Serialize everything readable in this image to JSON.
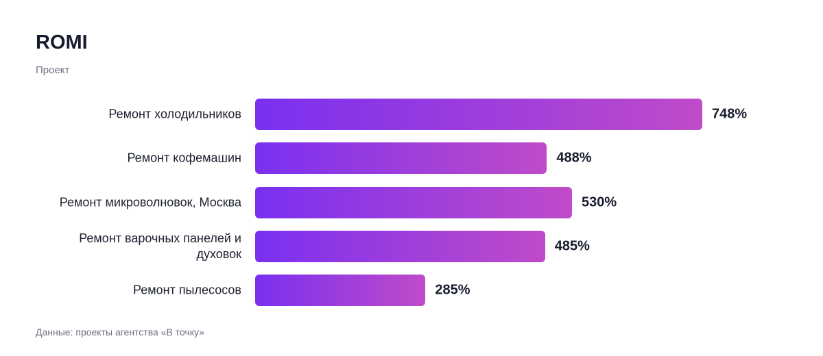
{
  "chart_data": {
    "type": "bar",
    "orientation": "horizontal",
    "title": "ROMI",
    "subtitle": "Проект",
    "categories": [
      "Ремонт холодильников",
      "Ремонт кофемашин",
      "Ремонт микроволновок, Москва",
      "Ремонт варочных панелей и духовок",
      "Ремонт пылесосов"
    ],
    "values": [
      748,
      488,
      530,
      485,
      285
    ],
    "value_labels": [
      "748%",
      "488%",
      "530%",
      "485%",
      "285%"
    ],
    "gradient": [
      "#7a30f0",
      "#bf4bc9"
    ],
    "source": "Данные: проекты агентства «В точку»"
  }
}
